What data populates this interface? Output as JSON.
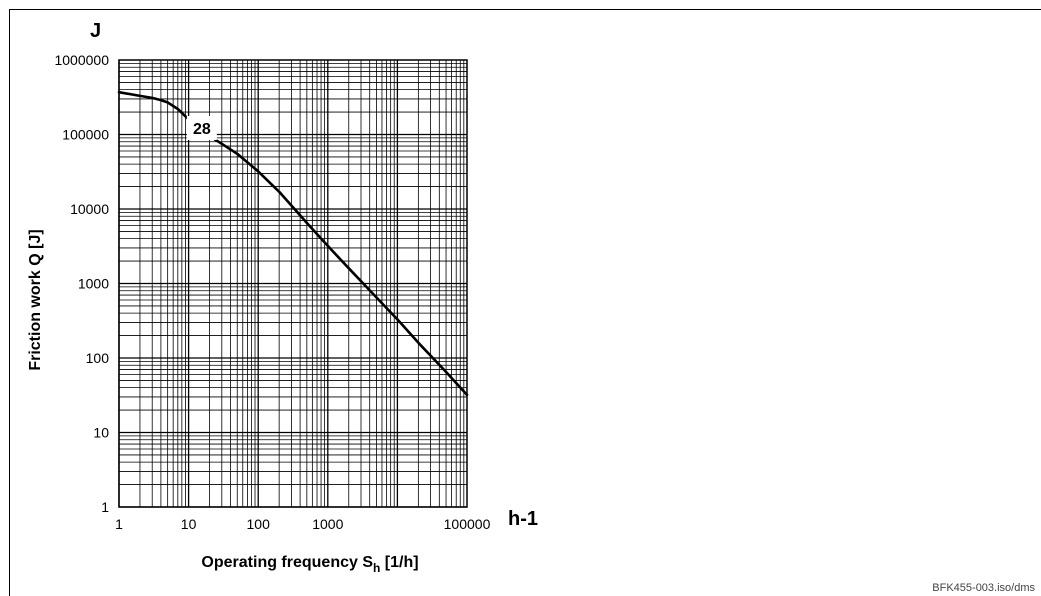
{
  "footer_code": "BFK455-003.iso/dms",
  "chart_data": {
    "type": "line",
    "title": "",
    "xlabel_main": "Operating frequency S",
    "xlabel_sub": "h",
    "xlabel_tail": " [1/h]",
    "ylabel": "Friction work Q [J]",
    "x_unit": "h-1",
    "y_unit": "J",
    "x_scale": "log",
    "y_scale": "log",
    "xlim": [
      1,
      100000
    ],
    "ylim": [
      1,
      1000000
    ],
    "grid": true,
    "x_ticks": [
      {
        "value": 1,
        "label": "1"
      },
      {
        "value": 10,
        "label": "10"
      },
      {
        "value": 100,
        "label": "100"
      },
      {
        "value": 1000,
        "label": "1000"
      },
      {
        "value": 100000,
        "label": "100000"
      }
    ],
    "y_ticks": [
      {
        "value": 1,
        "label": "1"
      },
      {
        "value": 10,
        "label": "10"
      },
      {
        "value": 100,
        "label": "100"
      },
      {
        "value": 1000,
        "label": "1000"
      },
      {
        "value": 10000,
        "label": "10000"
      },
      {
        "value": 100000,
        "label": "100000"
      },
      {
        "value": 1000000,
        "label": "1000000"
      }
    ],
    "series": [
      {
        "name": "28",
        "x": [
          1,
          2,
          3,
          4,
          5,
          7,
          10,
          15,
          20,
          30,
          50,
          100,
          200,
          500,
          1000,
          2000,
          5000,
          10000,
          20000,
          50000,
          100000
        ],
        "y": [
          370000,
          330000,
          310000,
          290000,
          270000,
          220000,
          160000,
          115000,
          95000,
          75000,
          55000,
          32000,
          17000,
          6500,
          3200,
          1600,
          650,
          330,
          160,
          65,
          32
        ]
      }
    ]
  }
}
